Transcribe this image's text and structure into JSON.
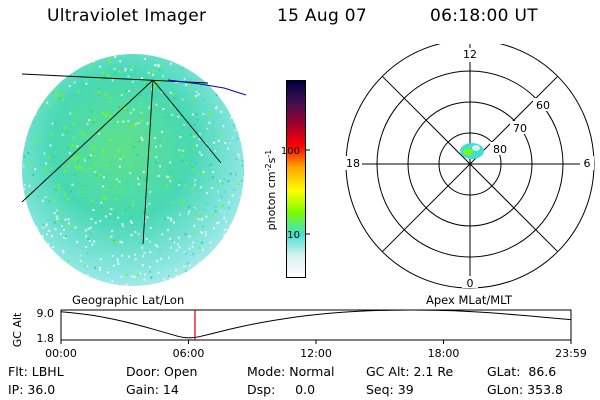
{
  "header": {
    "title": "Ultraviolet Imager",
    "date": "15 Aug 07",
    "time": "06:18:00 UT"
  },
  "colorbar": {
    "unit_label": "photon cm",
    "unit_exp1": "-2",
    "unit_mid": "s",
    "unit_exp2": "-1",
    "ticks": [
      "100",
      "10"
    ],
    "colors": [
      "#ffffff",
      "#d8f0f0",
      "#40e0d0",
      "#7cfc00",
      "#ffff00",
      "#ffa500",
      "#ff0000",
      "#a00030",
      "#401050",
      "#000040"
    ]
  },
  "disk_panel": {
    "label": "Geographic Lat/Lon"
  },
  "polar_panel": {
    "label": "Apex MLat/MLT",
    "mlt_labels": {
      "top": "12",
      "bottom": "0",
      "left": "18",
      "right": "6"
    },
    "lat_labels": [
      "60",
      "70",
      "80"
    ]
  },
  "altitude_plot": {
    "ylabel": "GC Alt",
    "ymax_label": "9.0",
    "ymin_label": "1.8",
    "xticks": [
      "00:00",
      "06:00",
      "12:00",
      "18:00",
      "23:59"
    ]
  },
  "info": {
    "row1": [
      "Flt: LBHL",
      "Door: Open",
      "Mode: Normal",
      "GC Alt: 2.1 Re",
      "GLat:  86.6"
    ],
    "row2": [
      "IP: 36.0",
      "Gain: 14",
      "Dsp:     0.0",
      "Seq: 39",
      "GLon: 353.8"
    ]
  },
  "chart_data": {
    "type": "line",
    "title": "",
    "xlabel": "",
    "ylabel": "GC Alt",
    "x": [
      "00:00",
      "01:00",
      "02:00",
      "03:00",
      "04:00",
      "05:00",
      "06:00",
      "07:00",
      "08:00",
      "09:00",
      "10:00",
      "11:00",
      "12:00",
      "13:00",
      "14:00",
      "15:00",
      "16:00",
      "17:00",
      "18:00",
      "19:00",
      "20:00",
      "21:00",
      "22:00",
      "23:00",
      "23:59"
    ],
    "series": [
      {
        "values": [
          8.6,
          8.1,
          7.3,
          6.2,
          4.9,
          3.4,
          2.0,
          3.2,
          4.5,
          5.6,
          6.5,
          7.3,
          7.9,
          8.4,
          8.7,
          8.9,
          9.0,
          9.0,
          8.9,
          8.7,
          8.4,
          8.0,
          7.6,
          7.1,
          6.7
        ]
      }
    ],
    "ylim": [
      1.8,
      9.0
    ],
    "current_time": "06:18"
  }
}
